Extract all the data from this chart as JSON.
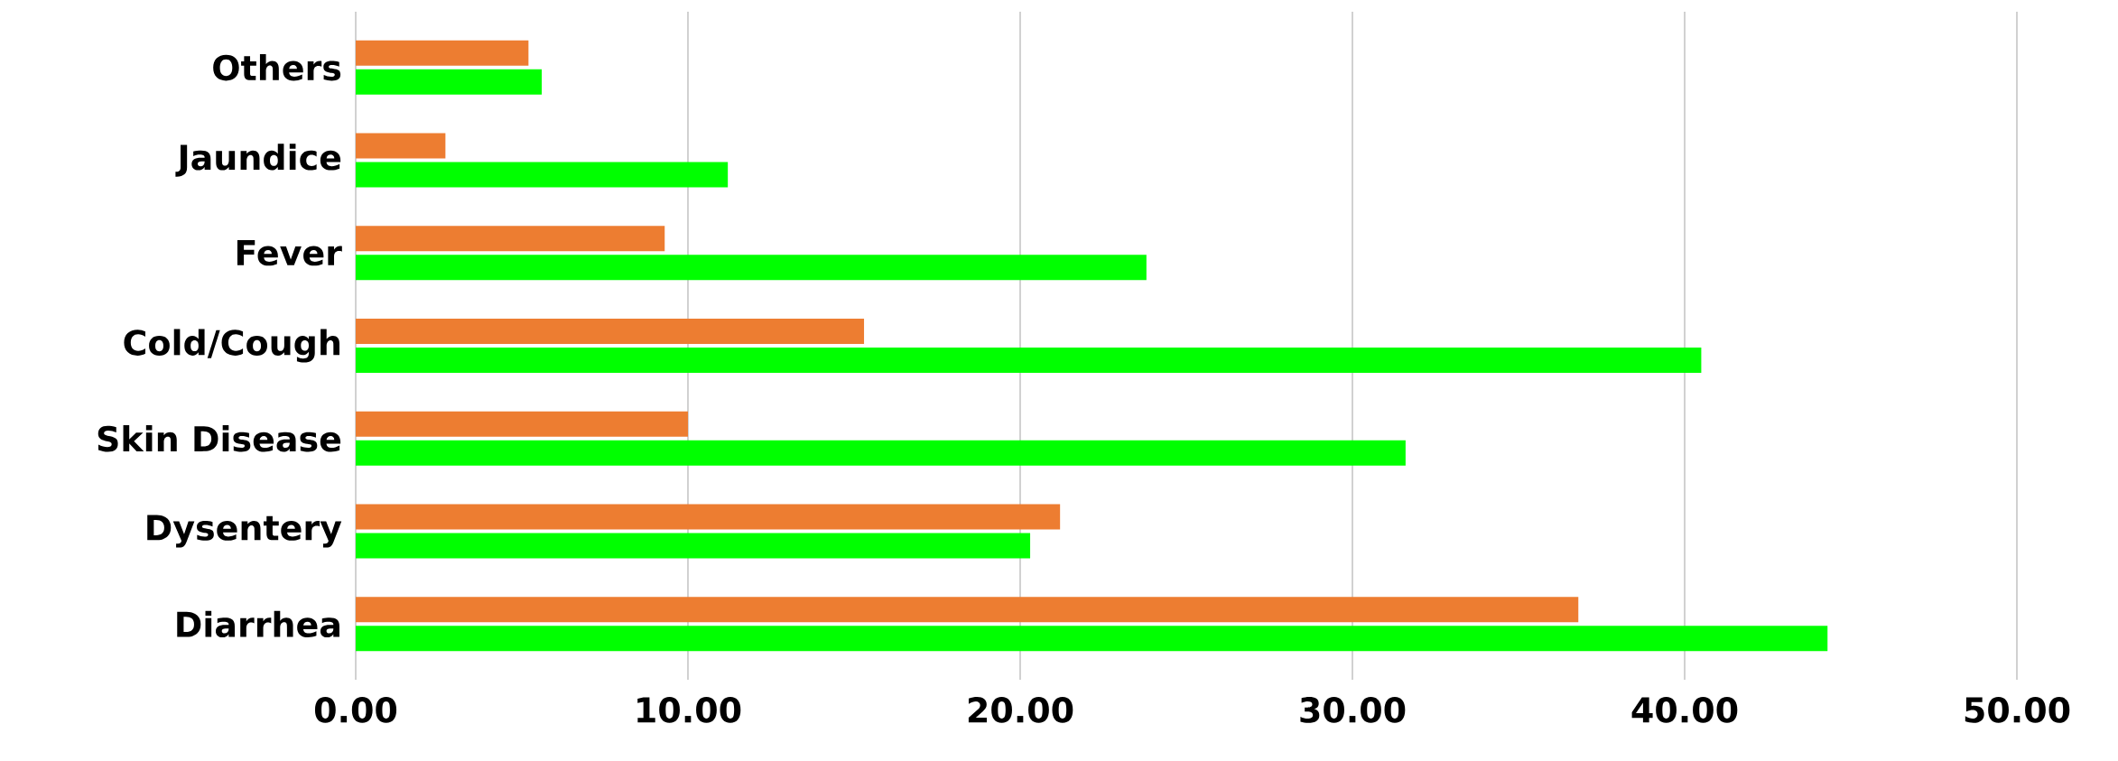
{
  "chart_data": {
    "type": "bar",
    "orientation": "horizontal",
    "categories": [
      "Others",
      "Jaundice",
      "Fever",
      "Cold/Cough",
      "Skin Disease",
      "Dysentery",
      "Diarrhea"
    ],
    "series": [
      {
        "color": "#ed7d31",
        "values": [
          5.2,
          2.7,
          9.3,
          15.3,
          10.0,
          21.2,
          36.8
        ]
      },
      {
        "color": "#00ff00",
        "values": [
          5.6,
          11.2,
          23.8,
          40.5,
          31.6,
          20.3,
          44.3
        ]
      }
    ],
    "xlim": [
      0,
      50
    ],
    "xticks": [
      {
        "value": 0,
        "label": "0.00"
      },
      {
        "value": 10,
        "label": "10.00"
      },
      {
        "value": 20,
        "label": "20.00"
      },
      {
        "value": 30,
        "label": "30.00"
      },
      {
        "value": 40,
        "label": "40.00"
      },
      {
        "value": 50,
        "label": "50.00"
      }
    ],
    "grid": "x"
  }
}
